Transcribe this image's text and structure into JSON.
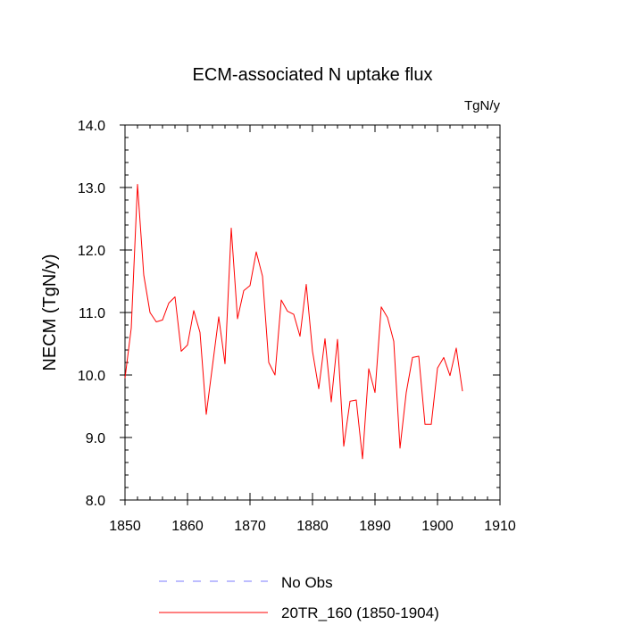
{
  "chart_data": {
    "type": "line",
    "title": "ECM-associated N uptake flux",
    "units": "TgN/y",
    "ylabel": "NECM  (TgN/y)",
    "xlabel": "",
    "xlim": [
      1850,
      1910
    ],
    "ylim": [
      8.0,
      14.0
    ],
    "x_ticks": [
      1850,
      1860,
      1870,
      1880,
      1890,
      1900,
      1910
    ],
    "y_ticks": [
      8.0,
      9.0,
      10.0,
      11.0,
      12.0,
      13.0,
      14.0
    ],
    "x_tick_labels": [
      "1850",
      "1860",
      "1870",
      "1880",
      "1890",
      "1900",
      "1910"
    ],
    "y_tick_labels": [
      "8.0",
      "9.0",
      "10.0",
      "11.0",
      "12.0",
      "13.0",
      "14.0"
    ],
    "legend": [
      {
        "label": "No Obs",
        "color": "#7b7bff",
        "style": "dashed"
      },
      {
        "label": "20TR_160 (1850-1904)",
        "color": "#ff0000",
        "style": "solid"
      }
    ],
    "series": [
      {
        "name": "20TR_160 (1850-1904)",
        "color": "#ff0000",
        "x": [
          1850,
          1851,
          1852,
          1853,
          1854,
          1855,
          1856,
          1857,
          1858,
          1859,
          1860,
          1861,
          1862,
          1863,
          1864,
          1865,
          1866,
          1867,
          1868,
          1869,
          1870,
          1871,
          1872,
          1873,
          1874,
          1875,
          1876,
          1877,
          1878,
          1879,
          1880,
          1881,
          1882,
          1883,
          1884,
          1885,
          1886,
          1887,
          1888,
          1889,
          1890,
          1891,
          1892,
          1893,
          1894,
          1895,
          1896,
          1897,
          1898,
          1899,
          1900,
          1901,
          1902,
          1903,
          1904
        ],
        "values": [
          9.95,
          10.75,
          13.05,
          11.6,
          11.0,
          10.85,
          10.88,
          11.15,
          11.25,
          10.38,
          10.48,
          11.03,
          10.68,
          9.37,
          10.15,
          10.93,
          10.18,
          12.35,
          10.9,
          11.35,
          11.43,
          11.97,
          11.58,
          10.2,
          10.0,
          11.2,
          11.02,
          10.97,
          10.62,
          11.45,
          10.38,
          9.78,
          10.58,
          9.57,
          10.57,
          8.86,
          9.58,
          9.6,
          8.66,
          10.1,
          9.72,
          11.09,
          10.92,
          10.54,
          8.83,
          9.72,
          10.28,
          10.3,
          9.21,
          9.21,
          10.11,
          10.28,
          9.99,
          10.43,
          9.74
        ]
      }
    ]
  }
}
